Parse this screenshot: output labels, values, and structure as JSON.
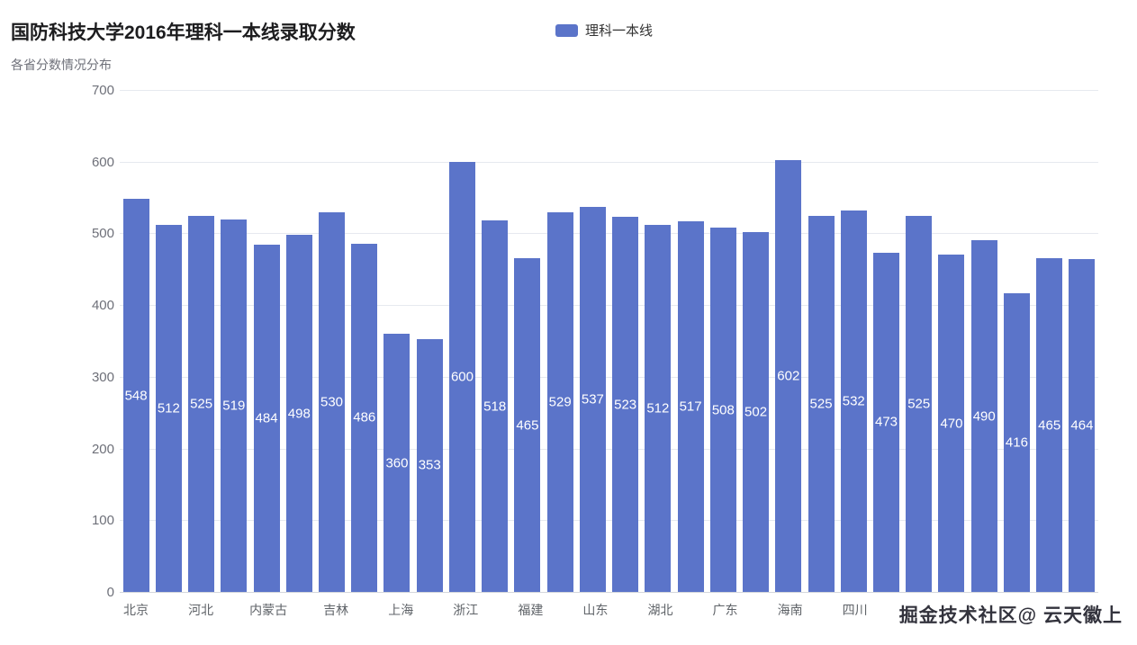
{
  "header": {
    "title": "国防科技大学2016年理科一本线录取分数",
    "subtitle": "各省分数情况分布"
  },
  "legend": {
    "label": "理科一本线",
    "color": "#5b74c9"
  },
  "watermark": {
    "text": "掘金技术社区@ 云天徽上"
  },
  "chart_data": {
    "type": "bar",
    "title": "国防科技大学2016年理科一本线录取分数",
    "subtitle": "各省分数情况分布",
    "series": [
      {
        "name": "理科一本线",
        "values": [
          548,
          512,
          525,
          519,
          484,
          498,
          530,
          486,
          360,
          353,
          600,
          518,
          465,
          529,
          537,
          523,
          512,
          517,
          508,
          502,
          602,
          525,
          532,
          473,
          525,
          470,
          490,
          416,
          465,
          464
        ]
      }
    ],
    "categories": [
      "北京",
      "",
      "河北",
      "",
      "内蒙古",
      "",
      "吉林",
      "",
      "上海",
      "",
      "浙江",
      "",
      "福建",
      "",
      "山东",
      "",
      "湖北",
      "",
      "广东",
      "",
      "海南",
      "",
      "四川",
      "",
      "",
      "",
      "",
      "",
      "",
      ""
    ],
    "ylim": [
      0,
      700
    ],
    "yticks": [
      0,
      100,
      200,
      300,
      400,
      500,
      600,
      700
    ],
    "bar_color": "#5b74c9",
    "value_label_color": "#ffffff",
    "value_label_position": "inside-middle",
    "grid": true,
    "legend_position": "top",
    "xlabel": "",
    "ylabel": ""
  }
}
